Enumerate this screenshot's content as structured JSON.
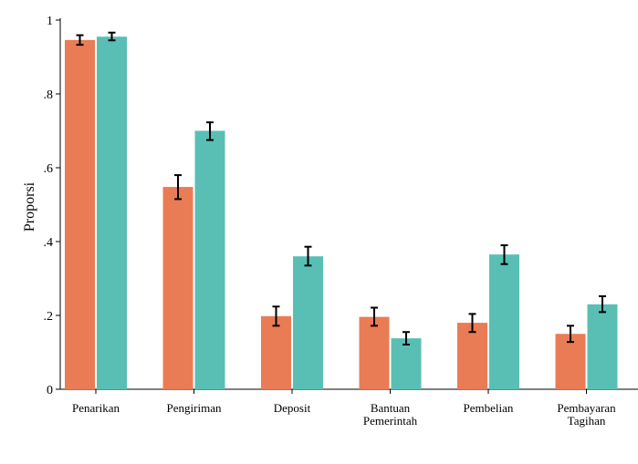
{
  "chart_data": {
    "type": "bar",
    "title": "",
    "xlabel": "",
    "ylabel": "Proporsi",
    "ylim": [
      0,
      1
    ],
    "yticks": [
      0,
      0.2,
      0.4,
      0.6,
      0.8,
      1
    ],
    "ytick_labels": [
      "0",
      ".2",
      ".4",
      ".6",
      ".8",
      "1"
    ],
    "categories": [
      [
        "Penarikan"
      ],
      [
        "Pengiriman"
      ],
      [
        "Deposit"
      ],
      [
        "Bantuan",
        "Pemerintah"
      ],
      [
        "Pembelian"
      ],
      [
        "Pembayaran",
        "Tagihan"
      ]
    ],
    "series": [
      {
        "color": "#E97C55",
        "values": [
          0.946,
          0.548,
          0.198,
          0.196,
          0.18,
          0.15
        ],
        "error_low": [
          0.933,
          0.515,
          0.172,
          0.172,
          0.155,
          0.128
        ],
        "error_high": [
          0.959,
          0.58,
          0.224,
          0.221,
          0.204,
          0.172
        ]
      },
      {
        "color": "#59BFB4",
        "values": [
          0.955,
          0.7,
          0.36,
          0.138,
          0.365,
          0.23
        ],
        "error_low": [
          0.945,
          0.675,
          0.335,
          0.121,
          0.339,
          0.209
        ],
        "error_high": [
          0.966,
          0.723,
          0.386,
          0.155,
          0.39,
          0.252
        ]
      }
    ],
    "grid": false,
    "legend": "none"
  }
}
